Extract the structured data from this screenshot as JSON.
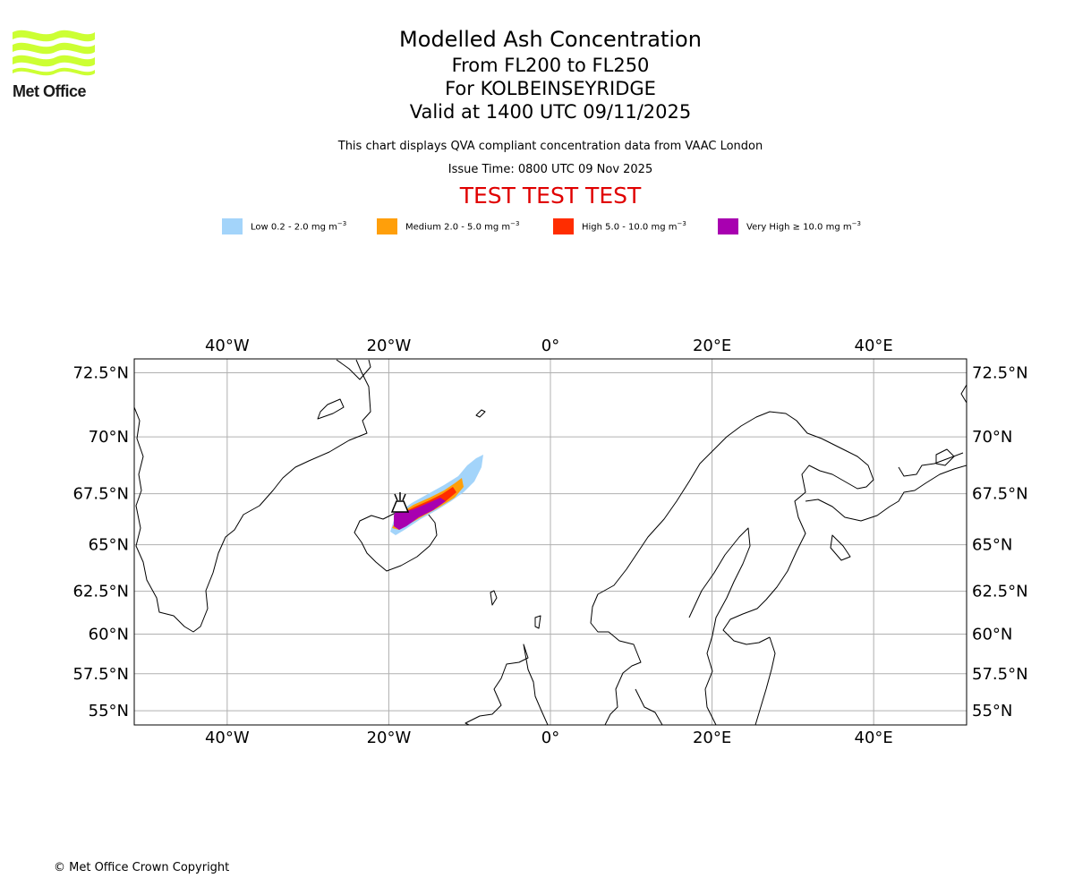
{
  "logo": {
    "text": "Met Office",
    "color": "#ccff33"
  },
  "title": "Modelled Ash Concentration",
  "flight_levels": "From FL200 to FL250",
  "location": "For KOLBEINSEYRIDGE",
  "valid_time": "Valid at 1400 UTC 09/11/2025",
  "description": "This chart displays QVA compliant concentration data from VAAC London",
  "issue_time": "Issue Time: 0800 UTC 09 Nov 2025",
  "test_banner": "TEST TEST TEST",
  "legend": [
    {
      "label": "Low 0.2 - 2.0 mg m",
      "color": "#a3d4fa"
    },
    {
      "label": "Medium 2.0 - 5.0 mg m",
      "color": "#ff9f0a"
    },
    {
      "label": "High 5.0 - 10.0 mg m",
      "color": "#ff2d00"
    },
    {
      "label": "Very High ≥ 10.0 mg m",
      "color": "#a800b0"
    }
  ],
  "legend_unit_exponent": "−3",
  "map": {
    "lon_ticks": [
      "40°W",
      "20°W",
      "0°",
      "20°E",
      "40°E"
    ],
    "lat_ticks": [
      "72.5°N",
      "70°N",
      "67.5°N",
      "65°N",
      "62.5°N",
      "60°N",
      "57.5°N",
      "55°N"
    ],
    "lon_values": [
      -40,
      -20,
      0,
      20,
      40
    ],
    "lat_values": [
      72.5,
      70,
      67.5,
      65,
      62.5,
      60,
      57.5,
      55
    ],
    "extent": {
      "lon_min": -51.5,
      "lon_max": 51.5,
      "lat_min": 54,
      "lat_max": 73
    },
    "volcano": {
      "name": "KOLBEINSEYRIDGE",
      "lon": -18.5,
      "lat": 67.0,
      "icon": "volcano-icon"
    },
    "grid": true,
    "coastline_color": "#000000"
  },
  "copyright": "© Met Office Crown Copyright"
}
